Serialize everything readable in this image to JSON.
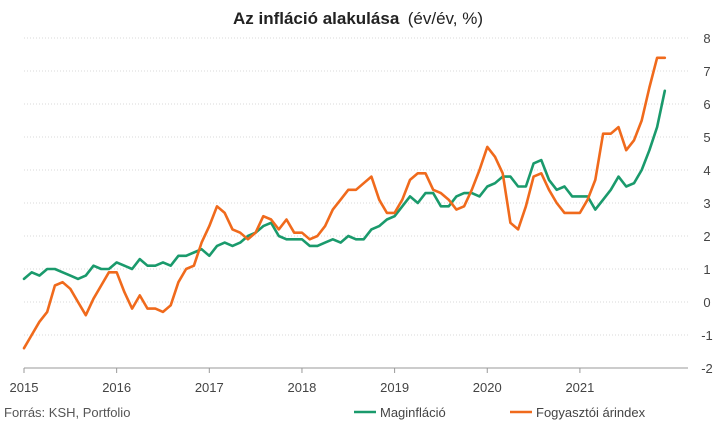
{
  "chart_data": {
    "type": "line",
    "title": "Az infláció alakulása",
    "title_unit": "(év/év, %)",
    "source": "Forrás: KSH, Portfolio",
    "x_ticks": [
      "2015",
      "2016",
      "2017",
      "2018",
      "2019",
      "2020",
      "2021"
    ],
    "y_ticks": [
      "8",
      "7",
      "6",
      "5",
      "4",
      "3",
      "2",
      "1",
      "0",
      "-1",
      "-2"
    ],
    "ylim": [
      -2,
      8
    ],
    "grid": "horizontal",
    "legend_position": "bottom",
    "start": "2015-01",
    "series": [
      {
        "name": "Maginfláció",
        "color": "#1a9a6c",
        "values": [
          0.7,
          0.9,
          0.8,
          1.0,
          1.0,
          0.9,
          0.8,
          0.7,
          0.8,
          1.1,
          1.0,
          1.0,
          1.2,
          1.1,
          1.0,
          1.3,
          1.1,
          1.1,
          1.2,
          1.1,
          1.4,
          1.4,
          1.5,
          1.6,
          1.4,
          1.7,
          1.8,
          1.7,
          1.8,
          2.0,
          2.1,
          2.3,
          2.4,
          2.0,
          1.9,
          1.9,
          1.9,
          1.7,
          1.7,
          1.8,
          1.9,
          1.8,
          2.0,
          1.9,
          1.9,
          2.2,
          2.3,
          2.5,
          2.6,
          2.9,
          3.2,
          3.0,
          3.3,
          3.3,
          2.9,
          2.9,
          3.2,
          3.3,
          3.3,
          3.2,
          3.5,
          3.6,
          3.8,
          3.8,
          3.5,
          3.5,
          4.2,
          4.3,
          3.7,
          3.4,
          3.5,
          3.2,
          3.2,
          3.2,
          2.8,
          3.1,
          3.4,
          3.8,
          3.5,
          3.6,
          4.0,
          4.6,
          5.3,
          6.4
        ]
      },
      {
        "name": "Fogyasztói árindex",
        "color": "#f06a1c",
        "values": [
          -1.4,
          -1.0,
          -0.6,
          -0.3,
          0.5,
          0.6,
          0.4,
          0.0,
          -0.4,
          0.1,
          0.5,
          0.9,
          0.9,
          0.3,
          -0.2,
          0.2,
          -0.2,
          -0.2,
          -0.3,
          -0.1,
          0.6,
          1.0,
          1.1,
          1.8,
          2.3,
          2.9,
          2.7,
          2.2,
          2.1,
          1.9,
          2.1,
          2.6,
          2.5,
          2.2,
          2.5,
          2.1,
          2.1,
          1.9,
          2.0,
          2.3,
          2.8,
          3.1,
          3.4,
          3.4,
          3.6,
          3.8,
          3.1,
          2.7,
          2.7,
          3.1,
          3.7,
          3.9,
          3.9,
          3.4,
          3.3,
          3.1,
          2.8,
          2.9,
          3.4,
          4.0,
          4.7,
          4.4,
          3.9,
          2.4,
          2.2,
          2.9,
          3.8,
          3.9,
          3.4,
          3.0,
          2.7,
          2.7,
          2.7,
          3.1,
          3.7,
          5.1,
          5.1,
          5.3,
          4.6,
          4.9,
          5.5,
          6.5,
          7.4,
          7.4
        ]
      }
    ]
  }
}
